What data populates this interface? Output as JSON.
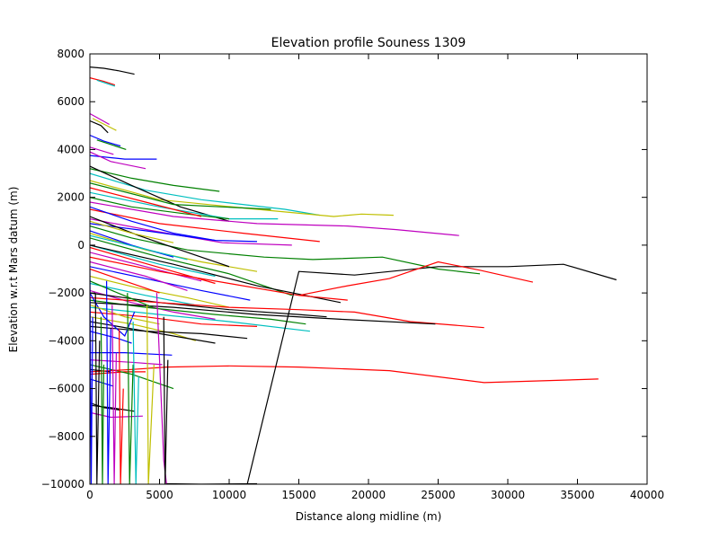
{
  "chart_data": {
    "type": "line",
    "title": "Elevation profile Souness 1309",
    "xlabel": "Distance along midline (m)",
    "ylabel": "Elevation w.r.t Mars datum (m)",
    "xlim": [
      0,
      40000
    ],
    "ylim": [
      -10000,
      8000
    ],
    "xticks": [
      0,
      5000,
      10000,
      15000,
      20000,
      25000,
      30000,
      35000,
      40000
    ],
    "yticks": [
      -10000,
      -8000,
      -6000,
      -4000,
      -2000,
      0,
      2000,
      4000,
      6000,
      8000
    ],
    "xtick_labels": [
      "0",
      "5000",
      "10000",
      "15000",
      "20000",
      "25000",
      "30000",
      "35000",
      "40000"
    ],
    "ytick_labels": [
      "−10000",
      "−8000",
      "−6000",
      "−4000",
      "−2000",
      "0",
      "2000",
      "4000",
      "6000",
      "8000"
    ],
    "grid": false,
    "legend": "none",
    "colors": [
      "#0000ff",
      "#008000",
      "#ff0000",
      "#00bfbf",
      "#bf00bf",
      "#bfbf00",
      "#000000"
    ],
    "series": [
      {
        "color": "#000000",
        "x": [
          0,
          1000,
          2000,
          3200
        ],
        "y": [
          7450,
          7400,
          7300,
          7150
        ]
      },
      {
        "color": "#ff0000",
        "x": [
          0,
          1000,
          1800
        ],
        "y": [
          7000,
          6850,
          6700
        ]
      },
      {
        "color": "#00bfbf",
        "x": [
          500,
          1800
        ],
        "y": [
          6900,
          6650
        ]
      },
      {
        "color": "#bf00bf",
        "x": [
          0,
          1400
        ],
        "y": [
          5500,
          5050
        ]
      },
      {
        "color": "#000000",
        "x": [
          0,
          800,
          1300
        ],
        "y": [
          5200,
          5000,
          4700
        ]
      },
      {
        "color": "#bfbf00",
        "x": [
          200,
          1900
        ],
        "y": [
          5300,
          4800
        ]
      },
      {
        "color": "#0000ff",
        "x": [
          0,
          1000,
          2200
        ],
        "y": [
          4600,
          4350,
          4150
        ]
      },
      {
        "color": "#008000",
        "x": [
          500,
          2600
        ],
        "y": [
          4400,
          4000
        ]
      },
      {
        "color": "#bf00bf",
        "x": [
          0,
          1700
        ],
        "y": [
          4100,
          3800
        ]
      },
      {
        "color": "#0000ff",
        "x": [
          0,
          2500,
          4800
        ],
        "y": [
          3750,
          3600,
          3600
        ]
      },
      {
        "color": "#bf00bf",
        "x": [
          0,
          1500,
          4000
        ],
        "y": [
          3900,
          3500,
          3200
        ]
      },
      {
        "color": "#008000",
        "x": [
          0,
          3000,
          6000,
          9300
        ],
        "y": [
          3200,
          2800,
          2500,
          2250
        ]
      },
      {
        "color": "#00bfbf",
        "x": [
          0,
          4000,
          8000,
          14000,
          16500
        ],
        "y": [
          3000,
          2300,
          1900,
          1500,
          1250
        ]
      },
      {
        "color": "#bfbf00",
        "x": [
          0,
          5000,
          12000,
          17500,
          19500,
          21800
        ],
        "y": [
          2700,
          1900,
          1500,
          1200,
          1300,
          1250
        ]
      },
      {
        "color": "#000000",
        "x": [
          0,
          3000,
          6500,
          10000
        ],
        "y": [
          3300,
          2500,
          1600,
          1000
        ]
      },
      {
        "color": "#008000",
        "x": [
          0,
          6000,
          13000
        ],
        "y": [
          2600,
          1700,
          1500
        ]
      },
      {
        "color": "#00bfbf",
        "x": [
          0,
          5000,
          10000,
          13500
        ],
        "y": [
          2200,
          1600,
          1100,
          1100
        ]
      },
      {
        "color": "#bf00bf",
        "x": [
          0,
          6000,
          12000,
          18500,
          22000,
          26500
        ],
        "y": [
          1800,
          1200,
          900,
          800,
          650,
          400
        ]
      },
      {
        "color": "#ff0000",
        "x": [
          0,
          5000,
          11000,
          16500
        ],
        "y": [
          1500,
          900,
          500,
          150
        ]
      },
      {
        "color": "#bf00bf",
        "x": [
          0,
          4500,
          9500,
          14500
        ],
        "y": [
          1100,
          600,
          100,
          0
        ]
      },
      {
        "color": "#0000ff",
        "x": [
          0,
          4000,
          9000,
          12000
        ],
        "y": [
          900,
          600,
          200,
          150
        ]
      },
      {
        "color": "#008000",
        "x": [
          0,
          3000,
          7000,
          12500,
          16000,
          21000,
          25000,
          28000
        ],
        "y": [
          800,
          300,
          -200,
          -500,
          -600,
          -500,
          -1000,
          -1200
        ]
      },
      {
        "color": "#bfbf00",
        "x": [
          0,
          4000,
          8000,
          12000
        ],
        "y": [
          500,
          -200,
          -700,
          -1100
        ]
      },
      {
        "color": "#000000",
        "x": [
          0,
          3500,
          7000,
          10000
        ],
        "y": [
          1200,
          400,
          -300,
          -900
        ]
      },
      {
        "color": "#0000ff",
        "x": [
          0,
          3000,
          6000
        ],
        "y": [
          600,
          0,
          -500
        ]
      },
      {
        "color": "#00bfbf",
        "x": [
          0,
          5000,
          9000
        ],
        "y": [
          0,
          -800,
          -1300
        ]
      },
      {
        "color": "#ff0000",
        "x": [
          0,
          3000,
          6000,
          9000
        ],
        "y": [
          -100,
          -600,
          -1100,
          -1600
        ]
      },
      {
        "color": "#bf00bf",
        "x": [
          0,
          4000,
          8000
        ],
        "y": [
          -300,
          -900,
          -1500
        ]
      },
      {
        "color": "#008000",
        "x": [
          0,
          5000,
          10000,
          14500
        ],
        "y": [
          300,
          -500,
          -1200,
          -2100
        ]
      },
      {
        "color": "#000000",
        "x": [
          0,
          6000,
          12000,
          18000
        ],
        "y": [
          0,
          -800,
          -1700,
          -2400
        ]
      },
      {
        "color": "#ff0000",
        "x": [
          0,
          5000,
          10000,
          15000,
          18500
        ],
        "y": [
          -500,
          -1100,
          -1600,
          -2100,
          -2300
        ]
      },
      {
        "color": "#0000ff",
        "x": [
          0,
          4000,
          8000,
          11500
        ],
        "y": [
          -900,
          -1400,
          -1900,
          -2300
        ]
      },
      {
        "color": "#bfbf00",
        "x": [
          0,
          3500,
          7000,
          10000
        ],
        "y": [
          -1300,
          -1800,
          -2200,
          -2600
        ]
      },
      {
        "color": "#00bfbf",
        "x": [
          0,
          4000,
          7500
        ],
        "y": [
          -1600,
          -2100,
          -2500
        ]
      },
      {
        "color": "#bf00bf",
        "x": [
          0,
          3000,
          6000,
          9000
        ],
        "y": [
          -1900,
          -2400,
          -2800,
          -3100
        ]
      },
      {
        "color": "#000000",
        "x": [
          0,
          5000,
          10000,
          15000,
          17000
        ],
        "y": [
          -2000,
          -2400,
          -2700,
          -2900,
          -3000
        ]
      },
      {
        "color": "#008000",
        "x": [
          0,
          4000,
          9000,
          13000,
          15500
        ],
        "y": [
          -2300,
          -2600,
          -2900,
          -3100,
          -3300
        ]
      },
      {
        "color": "#00bfbf",
        "x": [
          0,
          5000,
          10000,
          15800
        ],
        "y": [
          -2600,
          -2900,
          -3200,
          -3600
        ]
      },
      {
        "color": "#ff0000",
        "x": [
          0,
          4000,
          8000,
          12000
        ],
        "y": [
          -2800,
          -3000,
          -3300,
          -3400
        ]
      },
      {
        "color": "#bfbf00",
        "x": [
          0,
          3000,
          6000,
          7600
        ],
        "y": [
          -3000,
          -3300,
          -3700,
          -4000
        ]
      },
      {
        "color": "#000000",
        "x": [
          0,
          3000,
          6000,
          9000
        ],
        "y": [
          -3200,
          -3500,
          -3800,
          -4100
        ]
      },
      {
        "color": "#000000",
        "x": [
          0,
          4000,
          8000,
          11300
        ],
        "y": [
          -3400,
          -3600,
          -3700,
          -3900
        ]
      },
      {
        "color": "#0000ff",
        "x": [
          0,
          2000,
          3000
        ],
        "y": [
          -3600,
          -3900,
          -4100
        ]
      },
      {
        "color": "#0000ff",
        "x": [
          0,
          2500,
          5900
        ],
        "y": [
          -4500,
          -4500,
          -4600
        ]
      },
      {
        "color": "#bf00bf",
        "x": [
          0,
          3000,
          5200
        ],
        "y": [
          -4800,
          -4900,
          -5000
        ]
      },
      {
        "color": "#ff0000",
        "x": [
          0,
          2500,
          4000
        ],
        "y": [
          -5400,
          -5300,
          -5300
        ]
      },
      {
        "color": "#008000",
        "x": [
          0,
          3000,
          6000
        ],
        "y": [
          -5000,
          -5400,
          -6000
        ]
      },
      {
        "color": "#000000",
        "x": [
          0,
          1500
        ],
        "y": [
          -5200,
          -5300
        ]
      },
      {
        "color": "#0000ff",
        "x": [
          0,
          1700
        ],
        "y": [
          -5600,
          -5900
        ]
      },
      {
        "color": "#000000",
        "x": [
          0,
          1000,
          2200
        ],
        "y": [
          -6600,
          -6800,
          -6900
        ]
      },
      {
        "color": "#000000",
        "x": [
          0,
          1500,
          3200
        ],
        "y": [
          -6700,
          -6800,
          -6950
        ]
      },
      {
        "color": "#bf00bf",
        "x": [
          0,
          1500,
          3800
        ],
        "y": [
          -7000,
          -7200,
          -7150
        ]
      },
      {
        "color": "#ff0000",
        "x": [
          0,
          3000,
          5500,
          10000,
          15000,
          21500,
          28300,
          36500
        ],
        "y": [
          -5300,
          -5200,
          -5100,
          -5050,
          -5100,
          -5250,
          -5750,
          -5600
        ]
      },
      {
        "color": "#000000",
        "x": [
          11300,
          15000,
          19000,
          25000,
          30000,
          34000,
          37800
        ],
        "y": [
          -10000,
          -1100,
          -1250,
          -900,
          -900,
          -800,
          -1450
        ]
      },
      {
        "color": "#ff0000",
        "x": [
          15000,
          18500,
          21500,
          25000,
          28000,
          31800
        ],
        "y": [
          -2100,
          -1700,
          -1400,
          -700,
          -1050,
          -1550
        ]
      },
      {
        "color": "#ff0000",
        "x": [
          0,
          5000,
          10000,
          15000,
          19000,
          23000,
          28300
        ],
        "y": [
          -2200,
          -2400,
          -2600,
          -2700,
          -2800,
          -3200,
          -3450
        ]
      },
      {
        "color": "#000000",
        "x": [
          0,
          6000,
          12000,
          18000,
          24800
        ],
        "y": [
          -2400,
          -2600,
          -2900,
          -3100,
          -3300
        ]
      },
      {
        "color": "#0000ff",
        "x": [
          0,
          1000,
          2500,
          3200
        ],
        "y": [
          -2000,
          -3000,
          -3800,
          -2800
        ]
      },
      {
        "color": "#008000",
        "x": [
          0,
          3000,
          7000,
          10000
        ],
        "y": [
          2000,
          1600,
          1300,
          1100
        ]
      },
      {
        "color": "#ff0000",
        "x": [
          0,
          4000,
          8000
        ],
        "y": [
          2400,
          1800,
          1200
        ]
      },
      {
        "color": "#0000ff",
        "x": [
          0,
          3000,
          6000,
          9000
        ],
        "y": [
          1600,
          1000,
          500,
          200
        ]
      },
      {
        "color": "#bfbf00",
        "x": [
          0,
          3000,
          6000
        ],
        "y": [
          1000,
          500,
          100
        ]
      },
      {
        "color": "#bf00bf",
        "x": [
          0,
          4000,
          7000
        ],
        "y": [
          -700,
          -1300,
          -1900
        ]
      },
      {
        "color": "#ff0000",
        "x": [
          0,
          2500,
          5000
        ],
        "y": [
          -1000,
          -1500,
          -2000
        ]
      },
      {
        "color": "#008000",
        "x": [
          0,
          2000,
          4500
        ],
        "y": [
          -1500,
          -2000,
          -2600
        ]
      },
      {
        "color": "#00bfbf",
        "x": [
          0,
          3500,
          7000
        ],
        "y": [
          400,
          -100,
          -600
        ]
      },
      {
        "color": "#bfbf00",
        "x": [
          0,
          2500,
          5000
        ],
        "y": [
          -2500,
          -3000,
          -3300
        ]
      },
      {
        "color": "#0000ff",
        "x": [
          0,
          100,
          200
        ],
        "y": [
          -1000,
          -10000,
          -3000
        ]
      },
      {
        "color": "#000000",
        "x": [
          400,
          500,
          700
        ],
        "y": [
          -2000,
          -10000,
          -4000
        ]
      },
      {
        "color": "#008000",
        "x": [
          800,
          900,
          1000
        ],
        "y": [
          -3000,
          -10000,
          -5000
        ]
      },
      {
        "color": "#0000ff",
        "x": [
          1200,
          1300,
          1500
        ],
        "y": [
          -1500,
          -10000,
          -3500
        ]
      },
      {
        "color": "#bf00bf",
        "x": [
          1600,
          1750,
          1900
        ],
        "y": [
          -2500,
          -10000,
          -4500
        ]
      },
      {
        "color": "#ff0000",
        "x": [
          2100,
          2200,
          2400
        ],
        "y": [
          -3500,
          -10000,
          -6000
        ]
      },
      {
        "color": "#008000",
        "x": [
          2700,
          2850,
          3100
        ],
        "y": [
          -2000,
          -10000,
          -5000
        ]
      },
      {
        "color": "#00bfbf",
        "x": [
          3100,
          3300,
          3500
        ],
        "y": [
          -3200,
          -10000,
          -5500
        ]
      },
      {
        "color": "#bfbf00",
        "x": [
          4100,
          4200,
          4600
        ],
        "y": [
          -2500,
          -10000,
          -5000
        ]
      },
      {
        "color": "#bf00bf",
        "x": [
          4800,
          5300,
          5500
        ],
        "y": [
          -2000,
          -9000,
          -10000
        ]
      },
      {
        "color": "#000000",
        "x": [
          5300,
          5400,
          5600
        ],
        "y": [
          -3000,
          -10000,
          -4800
        ]
      },
      {
        "color": "#000000",
        "x": [
          5500,
          8000,
          12000
        ],
        "y": [
          -9980,
          -10000,
          -9980
        ]
      }
    ]
  }
}
